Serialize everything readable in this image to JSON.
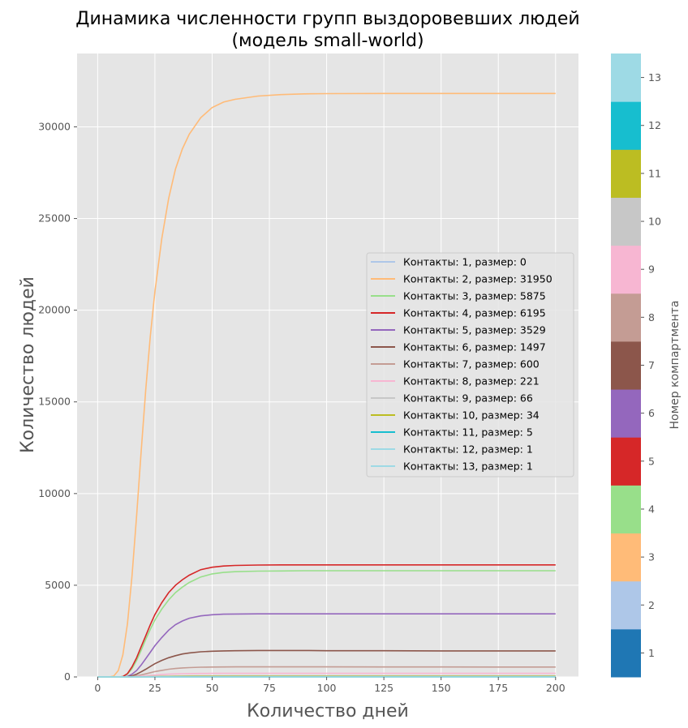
{
  "chart_data": {
    "type": "line",
    "title": [
      "Динамика численности групп выздоровевших людей",
      "(модель small-world)"
    ],
    "xlabel": "Количество дней",
    "ylabel": "Количество людей",
    "xlim": [
      -9,
      210
    ],
    "ylim": [
      0,
      34000
    ],
    "x_ticks": [
      0,
      25,
      50,
      75,
      100,
      125,
      150,
      175,
      200
    ],
    "y_ticks": [
      0,
      5000,
      10000,
      15000,
      20000,
      25000,
      30000
    ],
    "grid": true,
    "legend_position": "center-right",
    "x": [
      0,
      5,
      7,
      9,
      11,
      13,
      15,
      17,
      19,
      21,
      23,
      25,
      28,
      31,
      34,
      37,
      40,
      45,
      50,
      55,
      60,
      70,
      80,
      90,
      100,
      125,
      150,
      175,
      200
    ],
    "series": [
      {
        "name": "Контакты: 1, размер: 0",
        "color": "#aec7e8",
        "values": [
          0,
          0,
          0,
          0,
          0,
          0,
          0,
          0,
          0,
          0,
          0,
          0,
          0,
          0,
          0,
          0,
          0,
          0,
          0,
          0,
          0,
          0,
          0,
          0,
          0,
          0,
          0,
          0,
          0
        ]
      },
      {
        "name": "Контакты: 2, размер: 31950",
        "color": "#ffbb78",
        "values": [
          0,
          0,
          50,
          350,
          1200,
          2900,
          5500,
          8800,
          12300,
          15700,
          18600,
          21000,
          23900,
          26100,
          27700,
          28800,
          29600,
          30500,
          31050,
          31350,
          31500,
          31680,
          31760,
          31800,
          31810,
          31820,
          31820,
          31820,
          31820
        ]
      },
      {
        "name": "Контакты: 3, размер: 5875",
        "color": "#98df8a",
        "values": [
          0,
          0,
          0,
          0,
          20,
          150,
          450,
          900,
          1450,
          2050,
          2600,
          3100,
          3700,
          4200,
          4600,
          4900,
          5150,
          5450,
          5620,
          5700,
          5740,
          5770,
          5780,
          5790,
          5790,
          5790,
          5790,
          5790,
          5790
        ]
      },
      {
        "name": "Контакты: 4, размер: 6195",
        "color": "#d62728",
        "values": [
          0,
          0,
          0,
          0,
          20,
          180,
          550,
          1050,
          1650,
          2250,
          2850,
          3400,
          4050,
          4600,
          5000,
          5300,
          5550,
          5850,
          5980,
          6050,
          6080,
          6100,
          6110,
          6110,
          6110,
          6110,
          6110,
          6110,
          6110
        ]
      },
      {
        "name": "Контакты: 5, размер: 3529",
        "color": "#9467bd",
        "values": [
          0,
          0,
          0,
          0,
          0,
          30,
          150,
          350,
          650,
          1000,
          1350,
          1700,
          2150,
          2550,
          2850,
          3050,
          3200,
          3330,
          3390,
          3420,
          3430,
          3440,
          3440,
          3440,
          3440,
          3440,
          3440,
          3440,
          3440
        ]
      },
      {
        "name": "Контакты: 6, размер: 1497",
        "color": "#8c564b",
        "values": [
          0,
          0,
          0,
          0,
          0,
          10,
          60,
          150,
          280,
          420,
          570,
          720,
          900,
          1050,
          1160,
          1250,
          1310,
          1370,
          1400,
          1420,
          1430,
          1440,
          1440,
          1440,
          1430,
          1430,
          1420,
          1420,
          1420
        ]
      },
      {
        "name": "Контакты: 7, размер: 600",
        "color": "#c49c94",
        "values": [
          0,
          0,
          0,
          0,
          0,
          0,
          20,
          60,
          110,
          170,
          230,
          290,
          360,
          420,
          460,
          490,
          510,
          530,
          540,
          545,
          548,
          550,
          550,
          550,
          548,
          545,
          542,
          540,
          540
        ]
      },
      {
        "name": "Контакты: 8, размер: 221",
        "color": "#f7b6d2",
        "values": [
          0,
          0,
          0,
          0,
          0,
          0,
          5,
          20,
          40,
          60,
          80,
          100,
          130,
          150,
          165,
          175,
          182,
          190,
          195,
          198,
          200,
          200,
          200,
          200,
          200,
          200,
          200,
          200,
          200
        ]
      },
      {
        "name": "Контакты: 9, размер: 66",
        "color": "#c7c7c7",
        "values": [
          0,
          0,
          0,
          0,
          0,
          0,
          0,
          5,
          10,
          18,
          25,
          30,
          38,
          45,
          50,
          53,
          55,
          57,
          58,
          59,
          60,
          60,
          60,
          60,
          60,
          60,
          60,
          60,
          60
        ]
      },
      {
        "name": "Контакты: 10, размер: 34",
        "color": "#bcbd22",
        "values": [
          0,
          0,
          0,
          0,
          0,
          0,
          0,
          2,
          5,
          8,
          12,
          15,
          20,
          24,
          26,
          28,
          29,
          30,
          31,
          31,
          31,
          31,
          31,
          31,
          31,
          31,
          31,
          31,
          31
        ]
      },
      {
        "name": "Контакты: 11, размер: 5",
        "color": "#17becf",
        "values": [
          0,
          0,
          0,
          0,
          0,
          0,
          0,
          0,
          1,
          1,
          2,
          2,
          3,
          3,
          4,
          4,
          4,
          4,
          5,
          5,
          5,
          5,
          5,
          5,
          5,
          5,
          5,
          5,
          5
        ]
      },
      {
        "name": "Контакты: 12, размер: 1",
        "color": "#9edae5",
        "values": [
          0,
          0,
          0,
          0,
          0,
          0,
          0,
          0,
          0,
          0,
          0,
          0,
          0,
          0,
          1,
          1,
          1,
          1,
          1,
          1,
          1,
          1,
          1,
          1,
          1,
          1,
          1,
          1,
          1
        ]
      },
      {
        "name": "Контакты: 13, размер: 1",
        "color": "#9edae5",
        "values": [
          0,
          0,
          0,
          0,
          0,
          0,
          0,
          0,
          0,
          0,
          0,
          0,
          0,
          0,
          1,
          1,
          1,
          1,
          1,
          1,
          1,
          1,
          1,
          1,
          1,
          1,
          1,
          1,
          1
        ]
      }
    ],
    "colorbar": {
      "label": "Номер компартмента",
      "ticks": [
        "1",
        "2",
        "3",
        "4",
        "5",
        "6",
        "7",
        "8",
        "9",
        "10",
        "11",
        "12",
        "13"
      ],
      "colors": [
        "#1f77b4",
        "#aec7e8",
        "#ffbb78",
        "#98df8a",
        "#d62728",
        "#9467bd",
        "#8c564b",
        "#c49c94",
        "#f7b6d2",
        "#c7c7c7",
        "#bcbd22",
        "#17becf",
        "#9edae5"
      ]
    }
  }
}
